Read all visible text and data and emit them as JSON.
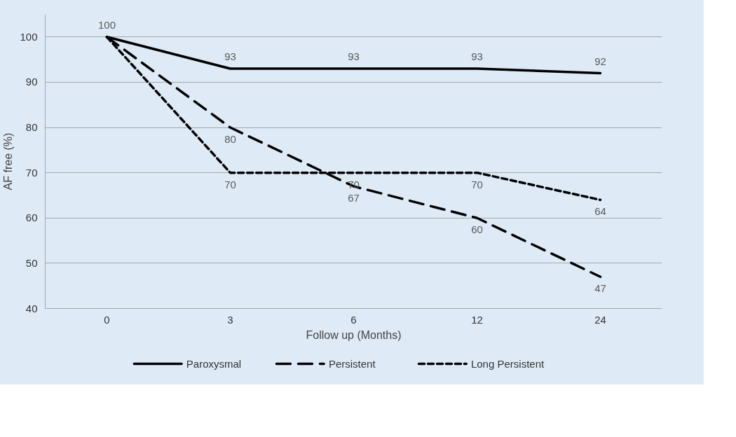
{
  "chart_data": {
    "type": "line",
    "xlabel": "Follow up (Months)",
    "ylabel": "AF free (%)",
    "categories": [
      "0",
      "3",
      "6",
      "12",
      "24"
    ],
    "ylim": [
      40,
      105
    ],
    "yticks": [
      40,
      50,
      60,
      70,
      80,
      90,
      100
    ],
    "grid": "y",
    "legend": "bottom",
    "marker": "none",
    "series": [
      {
        "name": "Paroxysmal",
        "color": "#000000",
        "line_style": "solid",
        "values": [
          100,
          93,
          93,
          93,
          92
        ],
        "value_labels": [
          "100",
          "93",
          "93",
          "93",
          "92"
        ]
      },
      {
        "name": "Persistent",
        "color": "#000000",
        "line_style": "dashed",
        "values": [
          100,
          80,
          67,
          60,
          47
        ],
        "value_labels": [
          null,
          "80",
          "67",
          "60",
          "47"
        ]
      },
      {
        "name": "Long Persistent",
        "color": "#000000",
        "line_style": "dotted",
        "values": [
          100,
          70,
          70,
          70,
          64
        ],
        "value_labels": [
          null,
          "70",
          "70",
          "70",
          "64"
        ]
      }
    ]
  }
}
